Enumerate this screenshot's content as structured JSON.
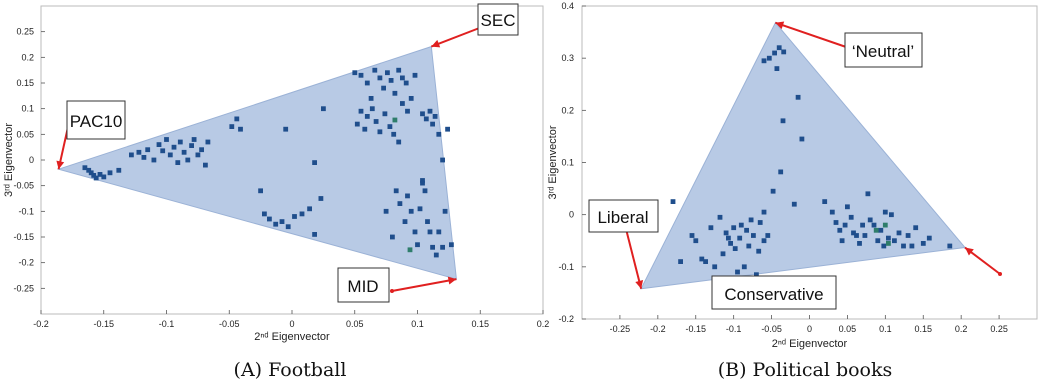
{
  "chart_data": [
    {
      "type": "scatter",
      "caption": "(A) Football",
      "xlabel": "2ⁿᵈ Eigenvector",
      "ylabel": "3ʳᵈ Eigenvector",
      "xlim": [
        -0.2,
        0.2
      ],
      "ylim": [
        -0.3,
        0.3
      ],
      "xticks": [
        "-0.2",
        "-0.15",
        "-0.1",
        "-0.05",
        "0",
        "0.05",
        "0.1",
        "0.15",
        "0.2"
      ],
      "yticks": [
        "0.25",
        "0.2",
        "0.15",
        "0.1",
        "0.05",
        "0",
        "-0.05",
        "-0.1",
        "-0.15",
        "-0.2",
        "-0.25"
      ],
      "simplex": [
        [
          -0.186,
          -0.018
        ],
        [
          0.111,
          0.221
        ],
        [
          0.131,
          -0.232
        ]
      ],
      "fill_color": "#a8bedf",
      "point_color": "#1f4e8c",
      "accent_color": "#2e7d6b",
      "annotations": [
        {
          "label": "SEC",
          "point": [
            0.111,
            0.221
          ]
        },
        {
          "label": "PAC10",
          "point": [
            -0.186,
            -0.018
          ]
        },
        {
          "label": "MID",
          "point": [
            0.131,
            -0.232
          ]
        }
      ],
      "points": [
        [
          -0.165,
          -0.015
        ],
        [
          -0.162,
          -0.02
        ],
        [
          -0.16,
          -0.025
        ],
        [
          -0.158,
          -0.03
        ],
        [
          -0.156,
          -0.035
        ],
        [
          -0.153,
          -0.028
        ],
        [
          -0.15,
          -0.033
        ],
        [
          -0.145,
          -0.025
        ],
        [
          -0.138,
          -0.02
        ],
        [
          -0.128,
          0.01
        ],
        [
          -0.122,
          0.015
        ],
        [
          -0.118,
          0.005
        ],
        [
          -0.115,
          0.02
        ],
        [
          -0.11,
          0.0
        ],
        [
          -0.106,
          0.03
        ],
        [
          -0.103,
          0.018
        ],
        [
          -0.1,
          0.04
        ],
        [
          -0.097,
          0.01
        ],
        [
          -0.094,
          0.025
        ],
        [
          -0.091,
          -0.005
        ],
        [
          -0.089,
          0.035
        ],
        [
          -0.086,
          0.015
        ],
        [
          -0.083,
          0.0
        ],
        [
          -0.08,
          0.028
        ],
        [
          -0.078,
          0.04
        ],
        [
          -0.075,
          0.01
        ],
        [
          -0.072,
          0.02
        ],
        [
          -0.069,
          -0.01
        ],
        [
          -0.067,
          0.035
        ],
        [
          -0.048,
          0.065
        ],
        [
          -0.044,
          0.08
        ],
        [
          -0.041,
          0.06
        ],
        [
          -0.005,
          0.06
        ],
        [
          0.018,
          -0.005
        ],
        [
          0.025,
          0.1
        ],
        [
          -0.025,
          -0.06
        ],
        [
          -0.022,
          -0.105
        ],
        [
          -0.018,
          -0.115
        ],
        [
          -0.013,
          -0.125
        ],
        [
          -0.008,
          -0.12
        ],
        [
          -0.003,
          -0.13
        ],
        [
          0.002,
          -0.11
        ],
        [
          0.008,
          -0.105
        ],
        [
          0.014,
          -0.095
        ],
        [
          0.018,
          -0.145
        ],
        [
          0.023,
          -0.075
        ],
        [
          0.05,
          0.17
        ],
        [
          0.055,
          0.165
        ],
        [
          0.06,
          0.15
        ],
        [
          0.063,
          0.12
        ],
        [
          0.066,
          0.175
        ],
        [
          0.07,
          0.16
        ],
        [
          0.073,
          0.14
        ],
        [
          0.076,
          0.17
        ],
        [
          0.079,
          0.155
        ],
        [
          0.082,
          0.13
        ],
        [
          0.085,
          0.175
        ],
        [
          0.088,
          0.16
        ],
        [
          0.091,
          0.15
        ],
        [
          0.095,
          0.12
        ],
        [
          0.098,
          0.165
        ],
        [
          0.052,
          0.07
        ],
        [
          0.055,
          0.095
        ],
        [
          0.058,
          0.06
        ],
        [
          0.06,
          0.085
        ],
        [
          0.064,
          0.1
        ],
        [
          0.067,
          0.075
        ],
        [
          0.07,
          0.055
        ],
        [
          0.074,
          0.09
        ],
        [
          0.078,
          0.065
        ],
        [
          0.081,
          0.05
        ],
        [
          0.085,
          0.035
        ],
        [
          0.088,
          0.11
        ],
        [
          0.092,
          0.095
        ],
        [
          0.104,
          0.09
        ],
        [
          0.107,
          0.08
        ],
        [
          0.11,
          0.095
        ],
        [
          0.112,
          0.07
        ],
        [
          0.114,
          0.085
        ],
        [
          0.117,
          0.05
        ],
        [
          0.12,
          0.0
        ],
        [
          0.124,
          0.06
        ],
        [
          0.104,
          -0.04
        ],
        [
          0.075,
          -0.1
        ],
        [
          0.08,
          -0.15
        ],
        [
          0.083,
          -0.06
        ],
        [
          0.086,
          -0.085
        ],
        [
          0.09,
          -0.12
        ],
        [
          0.092,
          -0.07
        ],
        [
          0.095,
          -0.1
        ],
        [
          0.098,
          -0.14
        ],
        [
          0.1,
          -0.165
        ],
        [
          0.102,
          -0.095
        ],
        [
          0.104,
          -0.045
        ],
        [
          0.106,
          -0.06
        ],
        [
          0.108,
          -0.12
        ],
        [
          0.11,
          -0.14
        ],
        [
          0.112,
          -0.17
        ],
        [
          0.115,
          -0.185
        ],
        [
          0.117,
          -0.14
        ],
        [
          0.12,
          -0.17
        ],
        [
          0.122,
          -0.1
        ],
        [
          0.127,
          -0.165
        ]
      ],
      "accent_points": [
        [
          0.082,
          0.078
        ],
        [
          0.094,
          -0.175
        ]
      ]
    },
    {
      "type": "scatter",
      "caption": "(B) Political books",
      "xlabel": "2ⁿᵈ Eigenvector",
      "ylabel": "3ʳᵈ Eigenvector",
      "xlim": [
        -0.3,
        0.3
      ],
      "ylim": [
        -0.2,
        0.4
      ],
      "xticks": [
        "-0.25",
        "-0.2",
        "-0.15",
        "-0.1",
        "-0.05",
        "0",
        "0.05",
        "0.1",
        "0.15",
        "0.2",
        "0.25"
      ],
      "yticks": [
        "0.4",
        "0.3",
        "0.2",
        "0.1",
        "0",
        "-0.1",
        "-0.2"
      ],
      "simplex": [
        [
          -0.045,
          0.368
        ],
        [
          -0.222,
          -0.142
        ],
        [
          0.205,
          -0.063
        ]
      ],
      "fill_color": "#a8bedf",
      "point_color": "#1f4e8c",
      "accent_color": "#2e7d6b",
      "annotations": [
        {
          "label": "‘Neutral’",
          "point": [
            -0.045,
            0.368
          ]
        },
        {
          "label": "Liberal",
          "point": [
            -0.222,
            -0.142
          ]
        },
        {
          "label": "Conservative",
          "point": [
            0.205,
            -0.063
          ]
        }
      ],
      "points": [
        [
          -0.06,
          0.295
        ],
        [
          -0.053,
          0.3
        ],
        [
          -0.046,
          0.31
        ],
        [
          -0.04,
          0.32
        ],
        [
          -0.034,
          0.312
        ],
        [
          -0.043,
          0.28
        ],
        [
          -0.015,
          0.225
        ],
        [
          -0.01,
          0.145
        ],
        [
          -0.035,
          0.18
        ],
        [
          -0.038,
          0.082
        ],
        [
          -0.048,
          0.045
        ],
        [
          -0.02,
          0.02
        ],
        [
          0.02,
          0.025
        ],
        [
          -0.065,
          -0.015
        ],
        [
          -0.055,
          -0.04
        ],
        [
          -0.06,
          0.005
        ],
        [
          -0.18,
          0.025
        ],
        [
          -0.17,
          -0.09
        ],
        [
          -0.155,
          -0.04
        ],
        [
          -0.15,
          -0.05
        ],
        [
          -0.142,
          -0.085
        ],
        [
          -0.137,
          -0.09
        ],
        [
          -0.13,
          -0.025
        ],
        [
          -0.125,
          -0.1
        ],
        [
          -0.118,
          -0.005
        ],
        [
          -0.114,
          -0.075
        ],
        [
          -0.11,
          -0.035
        ],
        [
          -0.107,
          -0.045
        ],
        [
          -0.104,
          -0.055
        ],
        [
          -0.1,
          -0.025
        ],
        [
          -0.098,
          -0.065
        ],
        [
          -0.095,
          -0.11
        ],
        [
          -0.092,
          -0.045
        ],
        [
          -0.09,
          -0.02
        ],
        [
          -0.086,
          -0.1
        ],
        [
          -0.083,
          -0.03
        ],
        [
          -0.08,
          -0.06
        ],
        [
          -0.077,
          -0.01
        ],
        [
          -0.074,
          -0.04
        ],
        [
          -0.07,
          -0.115
        ],
        [
          -0.067,
          -0.07
        ],
        [
          -0.06,
          -0.05
        ],
        [
          0.03,
          0.005
        ],
        [
          0.035,
          -0.015
        ],
        [
          0.04,
          -0.03
        ],
        [
          0.043,
          -0.05
        ],
        [
          0.047,
          -0.02
        ],
        [
          0.05,
          0.015
        ],
        [
          0.055,
          -0.005
        ],
        [
          0.058,
          -0.035
        ],
        [
          0.062,
          -0.04
        ],
        [
          0.066,
          -0.055
        ],
        [
          0.07,
          -0.02
        ],
        [
          0.073,
          -0.04
        ],
        [
          0.077,
          0.04
        ],
        [
          0.08,
          -0.01
        ],
        [
          0.085,
          -0.02
        ],
        [
          0.09,
          -0.05
        ],
        [
          0.094,
          -0.03
        ],
        [
          0.098,
          -0.06
        ],
        [
          0.1,
          0.005
        ],
        [
          0.104,
          -0.045
        ],
        [
          0.108,
          0.0
        ],
        [
          0.112,
          -0.05
        ],
        [
          0.118,
          -0.035
        ],
        [
          0.124,
          -0.06
        ],
        [
          0.13,
          -0.04
        ],
        [
          0.135,
          -0.06
        ],
        [
          0.14,
          -0.025
        ],
        [
          0.15,
          -0.055
        ],
        [
          0.158,
          -0.045
        ],
        [
          0.185,
          -0.06
        ]
      ],
      "accent_points": [
        [
          0.088,
          -0.03
        ],
        [
          0.1,
          -0.02
        ],
        [
          0.104,
          -0.055
        ]
      ]
    }
  ]
}
